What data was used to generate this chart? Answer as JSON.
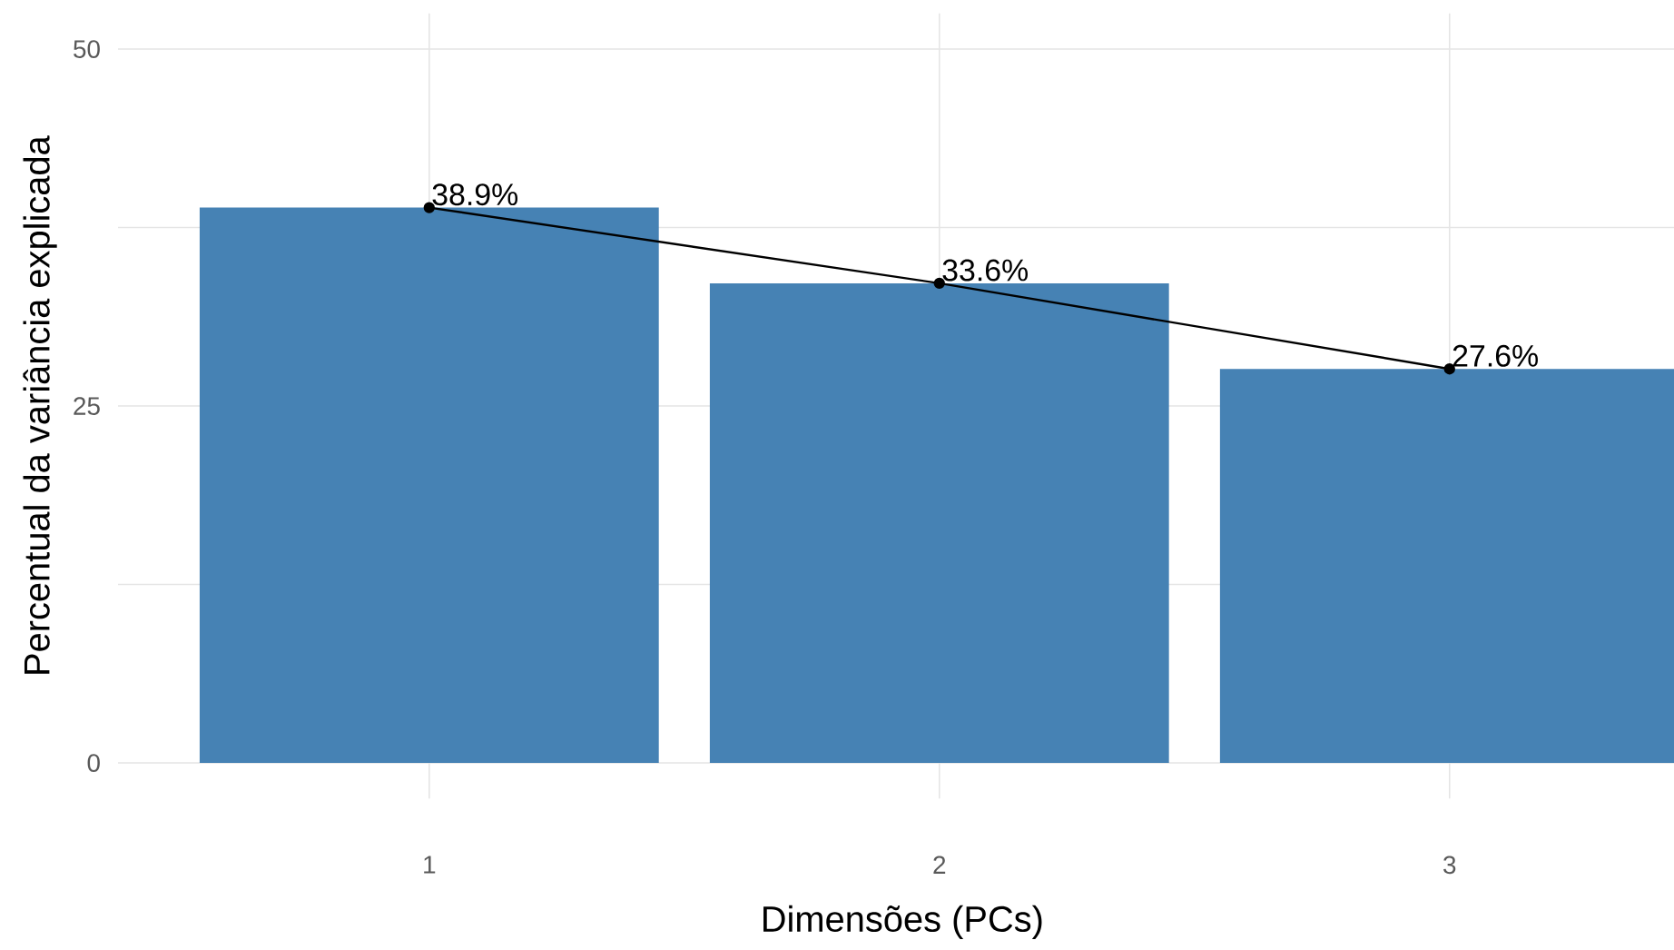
{
  "chart_data": {
    "type": "bar",
    "xlabel": "Dimensões (PCs)",
    "ylabel": "Percentual da variância explicada",
    "categories": [
      "1",
      "2",
      "3"
    ],
    "series": [
      {
        "color": "#4682b4",
        "values": [
          38.9,
          33.6,
          27.6
        ]
      },
      {
        "type": "line",
        "color": "#000000",
        "values": [
          38.9,
          33.6,
          27.6
        ],
        "marker": "circle",
        "value_labels": [
          "38.9%",
          "33.6%",
          "27.6%"
        ]
      }
    ],
    "ylim": [
      -2.5,
      52.5
    ],
    "yticks": [
      0,
      {
        "value": 12.5,
        "label": null
      },
      25,
      {
        "value": 37.5,
        "label": null
      },
      50
    ],
    "grid": true
  }
}
